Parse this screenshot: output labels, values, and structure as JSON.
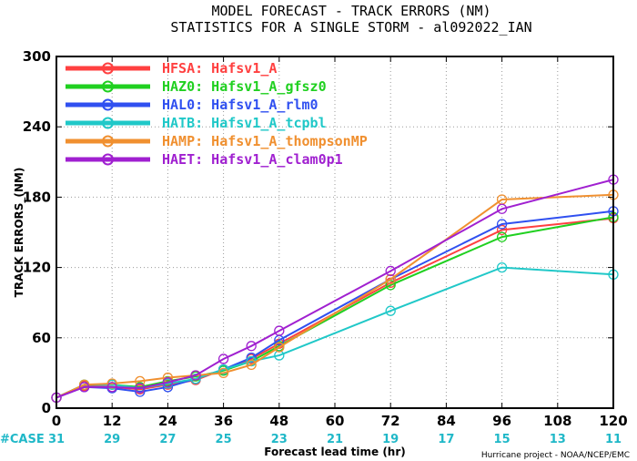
{
  "chart_data": {
    "type": "line",
    "title": "MODEL FORECAST - TRACK ERRORS (NM)",
    "subtitle": "STATISTICS FOR A SINGLE STORM - al092022_IAN",
    "xlabel": "Forecast lead time (hr)",
    "ylabel": "TRACK ERRORS_(NM)",
    "xlim": [
      0,
      120
    ],
    "ylim": [
      0,
      300
    ],
    "x_ticks": [
      "0",
      "12",
      "24",
      "36",
      "48",
      "60",
      "72",
      "84",
      "96",
      "108",
      "120"
    ],
    "y_ticks": [
      "0",
      "60",
      "120",
      "180",
      "240",
      "300"
    ],
    "case_label": "#CASE",
    "cases": [
      {
        "x": 0,
        "label": "31"
      },
      {
        "x": 12,
        "label": "29"
      },
      {
        "x": 24,
        "label": "27"
      },
      {
        "x": 36,
        "label": "25"
      },
      {
        "x": 48,
        "label": "23"
      },
      {
        "x": 60,
        "label": "21"
      },
      {
        "x": 72,
        "label": "19"
      },
      {
        "x": 84,
        "label": "17"
      },
      {
        "x": 96,
        "label": "15"
      },
      {
        "x": 108,
        "label": "13"
      },
      {
        "x": 120,
        "label": "11"
      }
    ],
    "credit": "Hurricane project - NOAA/NCEP/EMC",
    "legend_position": "top-left",
    "series": [
      {
        "name": "HFSA: Hafsv1_A",
        "color": "#ff4040",
        "x": [
          0,
          6,
          12,
          18,
          24,
          30,
          36,
          42,
          48,
          72,
          96,
          120
        ],
        "y": [
          9,
          19,
          18,
          16,
          20,
          24,
          33,
          42,
          55,
          107,
          152,
          162
        ]
      },
      {
        "x": [
          0,
          6,
          12,
          18,
          24,
          30,
          36,
          42,
          48,
          72,
          96,
          120
        ],
        "y": [
          9,
          20,
          20,
          18,
          23,
          27,
          32,
          40,
          53,
          105,
          146,
          163
        ],
        "name": "HAZ0: Hafsv1_A_gfsz0",
        "color": "#20d020"
      },
      {
        "name": "HAL0: Hafsv1_A_rlm0",
        "color": "#3050f0",
        "x": [
          0,
          6,
          12,
          18,
          24,
          30,
          36,
          42,
          48,
          72,
          96,
          120
        ],
        "y": [
          9,
          18,
          17,
          14,
          18,
          25,
          33,
          43,
          58,
          110,
          157,
          168
        ]
      },
      {
        "name": "HATB: Hafsv1_A_tcpbl",
        "color": "#20c8c8",
        "x": [
          0,
          6,
          12,
          18,
          24,
          30,
          36,
          42,
          48,
          72,
          96,
          120
        ],
        "y": [
          9,
          20,
          20,
          17,
          21,
          25,
          33,
          40,
          45,
          83,
          120,
          114
        ]
      },
      {
        "name": "HAMP: Hafsv1_A_thompsonMP",
        "color": "#f09030",
        "x": [
          0,
          6,
          12,
          18,
          24,
          30,
          36,
          42,
          48,
          72,
          96,
          120
        ],
        "y": [
          9,
          20,
          21,
          23,
          26,
          28,
          30,
          37,
          52,
          110,
          178,
          182
        ]
      },
      {
        "name": "HAET: Hafsv1_A_clam0p1",
        "color": "#a020d0",
        "x": [
          0,
          6,
          12,
          18,
          24,
          30,
          36,
          42,
          48,
          72,
          96,
          120
        ],
        "y": [
          9,
          18,
          18,
          17,
          22,
          28,
          42,
          53,
          66,
          117,
          170,
          195
        ]
      }
    ]
  }
}
